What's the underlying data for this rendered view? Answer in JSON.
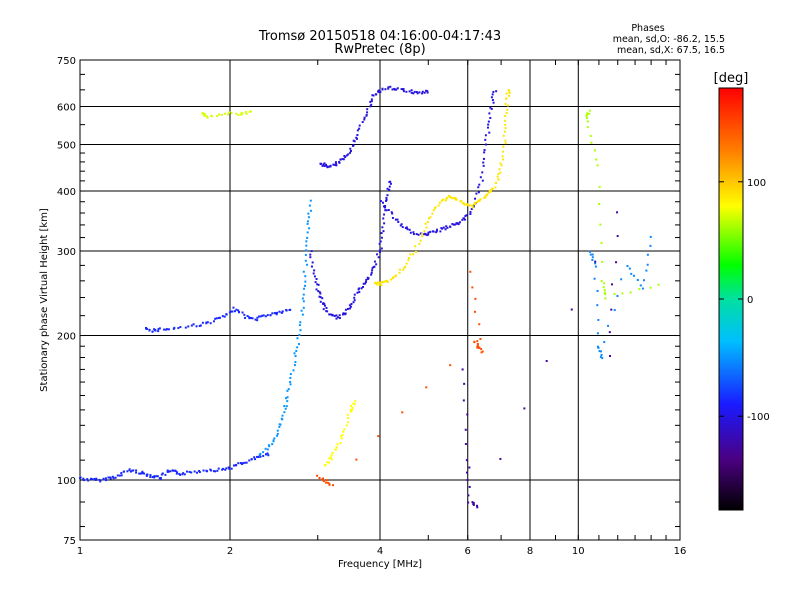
{
  "chart_data": {
    "type": "scatter",
    "title": "Tromsø 20150518 04:16:00-04:17:43",
    "subtitle": "RwPretec (8p)",
    "legend_text": {
      "heading": "Phases",
      "line1": "mean, sd,O: -86.2, 15.5",
      "line2": "mean, sd,X:  67.5, 16.5"
    },
    "xlabel": "Frequency [MHz]",
    "ylabel": "Stationary phase Virtual Height [km]",
    "x_scale": "log",
    "y_scale": "log",
    "xlim": [
      1,
      16
    ],
    "ylim": [
      75,
      750
    ],
    "x_ticks": [
      1,
      2,
      4,
      6,
      8,
      10,
      16
    ],
    "y_ticks": [
      75,
      100,
      200,
      300,
      400,
      500,
      600,
      750
    ],
    "grid": true,
    "colorbar": {
      "label": "[deg]",
      "range": [
        -180,
        180
      ],
      "ticks": [
        100,
        0,
        -100
      ]
    },
    "series": [
      {
        "phase": -95,
        "points": [
          [
            1.0,
            101
          ],
          [
            1.05,
            100
          ],
          [
            1.1,
            100
          ],
          [
            1.15,
            101
          ],
          [
            1.2,
            102
          ],
          [
            1.25,
            105
          ],
          [
            1.3,
            104
          ],
          [
            1.35,
            103
          ],
          [
            1.4,
            102
          ],
          [
            1.45,
            101
          ],
          [
            1.5,
            104
          ],
          [
            1.55,
            104
          ],
          [
            1.6,
            103
          ],
          [
            1.7,
            104
          ],
          [
            1.8,
            105
          ],
          [
            1.9,
            105
          ],
          [
            2.0,
            106
          ],
          [
            2.1,
            108
          ],
          [
            2.2,
            110
          ],
          [
            2.3,
            112
          ],
          [
            2.4,
            113
          ]
        ]
      },
      {
        "phase": -95,
        "points": [
          [
            1.35,
            206
          ],
          [
            1.4,
            205
          ],
          [
            1.45,
            206
          ],
          [
            1.55,
            207
          ],
          [
            1.7,
            210
          ],
          [
            1.8,
            212
          ],
          [
            1.9,
            217
          ],
          [
            2.0,
            222
          ],
          [
            2.05,
            228
          ],
          [
            2.15,
            219
          ],
          [
            2.25,
            216
          ],
          [
            2.35,
            220
          ],
          [
            2.45,
            222
          ],
          [
            2.55,
            224
          ],
          [
            2.65,
            226
          ]
        ]
      },
      {
        "phase": -55,
        "points": [
          [
            2.3,
            113
          ],
          [
            2.4,
            118
          ],
          [
            2.5,
            125
          ],
          [
            2.55,
            135
          ],
          [
            2.6,
            145
          ],
          [
            2.65,
            160
          ],
          [
            2.7,
            180
          ],
          [
            2.75,
            200
          ],
          [
            2.8,
            230
          ],
          [
            2.82,
            260
          ],
          [
            2.85,
            300
          ],
          [
            2.88,
            340
          ],
          [
            2.9,
            380
          ]
        ]
      },
      {
        "phase": -110,
        "points": [
          [
            2.9,
            300
          ],
          [
            2.95,
            270
          ],
          [
            3.0,
            250
          ],
          [
            3.05,
            238
          ],
          [
            3.1,
            228
          ],
          [
            3.2,
            220
          ],
          [
            3.3,
            218
          ],
          [
            3.4,
            222
          ],
          [
            3.5,
            232
          ],
          [
            3.6,
            245
          ],
          [
            3.7,
            255
          ],
          [
            3.8,
            265
          ],
          [
            3.9,
            280
          ],
          [
            4.0,
            300
          ],
          [
            4.05,
            330
          ],
          [
            4.1,
            370
          ],
          [
            4.15,
            400
          ],
          [
            4.2,
            420
          ]
        ]
      },
      {
        "phase": -110,
        "points": [
          [
            3.05,
            455
          ],
          [
            3.1,
            452
          ],
          [
            3.2,
            450
          ],
          [
            3.3,
            460
          ],
          [
            3.4,
            470
          ],
          [
            3.5,
            490
          ],
          [
            3.6,
            520
          ],
          [
            3.7,
            560
          ],
          [
            3.8,
            600
          ],
          [
            3.9,
            635
          ],
          [
            4.0,
            650
          ],
          [
            4.2,
            655
          ],
          [
            4.4,
            650
          ],
          [
            4.6,
            645
          ],
          [
            4.8,
            640
          ],
          [
            5.0,
            645
          ]
        ]
      },
      {
        "phase": -110,
        "points": [
          [
            4.0,
            380
          ],
          [
            4.2,
            360
          ],
          [
            4.4,
            340
          ],
          [
            4.6,
            330
          ],
          [
            4.8,
            325
          ],
          [
            5.0,
            325
          ],
          [
            5.2,
            330
          ],
          [
            5.4,
            335
          ],
          [
            5.6,
            340
          ],
          [
            5.8,
            345
          ],
          [
            6.0,
            355
          ],
          [
            6.2,
            380
          ],
          [
            6.4,
            420
          ],
          [
            6.5,
            480
          ],
          [
            6.6,
            540
          ],
          [
            6.7,
            600
          ],
          [
            6.8,
            650
          ]
        ]
      },
      {
        "phase": 90,
        "points": [
          [
            3.9,
            258
          ],
          [
            4.0,
            256
          ],
          [
            4.1,
            258
          ],
          [
            4.3,
            265
          ],
          [
            4.5,
            280
          ],
          [
            4.7,
            300
          ],
          [
            4.9,
            330
          ],
          [
            5.1,
            360
          ],
          [
            5.3,
            380
          ],
          [
            5.5,
            390
          ],
          [
            5.7,
            385
          ],
          [
            5.9,
            375
          ],
          [
            6.1,
            372
          ],
          [
            6.3,
            380
          ],
          [
            6.5,
            390
          ],
          [
            6.7,
            400
          ],
          [
            6.9,
            420
          ],
          [
            7.0,
            450
          ],
          [
            7.1,
            500
          ],
          [
            7.15,
            560
          ],
          [
            7.2,
            620
          ],
          [
            7.25,
            650
          ]
        ]
      },
      {
        "phase": 70,
        "points": [
          [
            1.75,
            580
          ],
          [
            1.8,
            572
          ],
          [
            1.95,
            580
          ],
          [
            2.1,
            578
          ],
          [
            2.2,
            585
          ]
        ]
      },
      {
        "phase": 80,
        "points": [
          [
            3.1,
            107
          ],
          [
            3.2,
            112
          ],
          [
            3.3,
            118
          ],
          [
            3.4,
            128
          ],
          [
            3.5,
            140
          ],
          [
            3.55,
            145
          ]
        ]
      },
      {
        "phase": 150,
        "points": [
          [
            3.0,
            102
          ],
          [
            3.1,
            100
          ],
          [
            3.2,
            98
          ],
          [
            6.2,
            195
          ],
          [
            6.3,
            190
          ],
          [
            6.4,
            185
          ],
          [
            6.1,
            270
          ]
        ]
      },
      {
        "phase": -60,
        "points": [
          [
            10.6,
            300
          ],
          [
            10.8,
            280
          ],
          [
            11.0,
            190
          ],
          [
            11.1,
            180
          ],
          [
            12.5,
            280
          ],
          [
            13.5,
            250
          ],
          [
            14.0,
            320
          ]
        ]
      },
      {
        "phase": 60,
        "points": [
          [
            10.5,
            590
          ],
          [
            10.4,
            560
          ],
          [
            11.0,
            450
          ],
          [
            11.2,
            260
          ],
          [
            11.3,
            240
          ],
          [
            14.5,
            255
          ]
        ]
      },
      {
        "phase": -130,
        "points": [
          [
            5.9,
            170
          ],
          [
            6.0,
            110
          ],
          [
            6.05,
            90
          ],
          [
            6.3,
            88
          ],
          [
            12.0,
            360
          ],
          [
            11.5,
            180
          ]
        ]
      }
    ]
  }
}
